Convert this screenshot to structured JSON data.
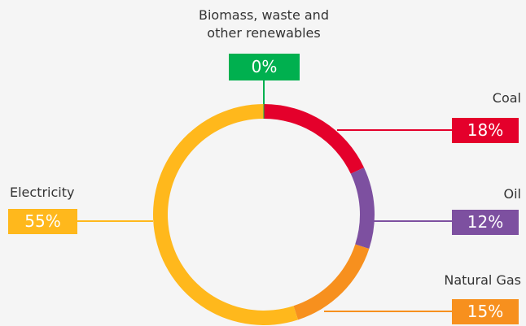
{
  "chart_data": {
    "type": "donut",
    "categories": [
      "Coal",
      "Oil",
      "Natural Gas",
      "Electricity",
      "Biomass, waste and other renewables"
    ],
    "values": [
      18,
      12,
      15,
      55,
      0
    ],
    "value_labels": [
      "18%",
      "12%",
      "15%",
      "55%",
      "0%"
    ],
    "colors": [
      "#e4002b",
      "#7d50a0",
      "#f7901e",
      "#ffb81c",
      "#00b04f"
    ]
  }
}
